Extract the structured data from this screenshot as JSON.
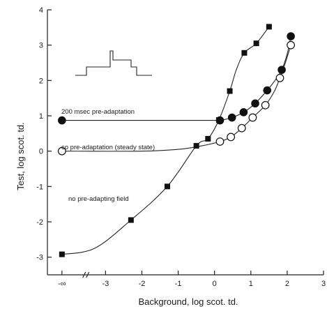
{
  "chart_data": {
    "type": "scatter",
    "title": "",
    "xlabel": "Background, log scot. td.",
    "ylabel": "Test, log scot. td.",
    "xlim": [
      -4.6,
      3.0
    ],
    "ylim": [
      -3.5,
      4.0
    ],
    "x_ticks": [
      {
        "value": -4.2,
        "label": "-∞"
      },
      {
        "value": -3,
        "label": "-3"
      },
      {
        "value": -2,
        "label": "-2"
      },
      {
        "value": -1,
        "label": "-1"
      },
      {
        "value": 0,
        "label": "0"
      },
      {
        "value": 1,
        "label": "1"
      },
      {
        "value": 2,
        "label": "2"
      },
      {
        "value": 3,
        "label": "3"
      }
    ],
    "y_ticks": [
      {
        "value": -3,
        "label": "-3"
      },
      {
        "value": -2,
        "label": "-2"
      },
      {
        "value": -1,
        "label": "-1"
      },
      {
        "value": 0,
        "label": "0"
      },
      {
        "value": 1,
        "label": "1"
      },
      {
        "value": 2,
        "label": "2"
      },
      {
        "value": 3,
        "label": "3"
      },
      {
        "value": 4,
        "label": "4"
      }
    ],
    "series": [
      {
        "name": "200 msec pre-adaptation",
        "marker": "filled-circle",
        "points": [
          [
            -4.2,
            0.87
          ],
          [
            0.15,
            0.87
          ],
          [
            0.48,
            0.95
          ],
          [
            0.8,
            1.1
          ],
          [
            1.12,
            1.35
          ],
          [
            1.45,
            1.72
          ],
          [
            1.85,
            2.3
          ],
          [
            2.1,
            3.25
          ]
        ],
        "curve": [
          [
            -4.2,
            0.87
          ],
          [
            -1.0,
            0.87
          ],
          [
            0.0,
            0.87
          ],
          [
            0.15,
            0.87
          ],
          [
            0.48,
            0.95
          ],
          [
            0.8,
            1.1
          ],
          [
            1.12,
            1.35
          ],
          [
            1.45,
            1.72
          ],
          [
            1.65,
            1.98
          ],
          [
            1.85,
            2.3
          ],
          [
            2.0,
            2.75
          ],
          [
            2.1,
            3.25
          ]
        ]
      },
      {
        "name": "co pre-adaptation (steady state)",
        "marker": "open-circle",
        "points": [
          [
            -4.2,
            0.0
          ],
          [
            0.15,
            0.27
          ],
          [
            0.45,
            0.4
          ],
          [
            0.75,
            0.65
          ],
          [
            1.05,
            0.95
          ],
          [
            1.4,
            1.3
          ],
          [
            1.8,
            2.07
          ],
          [
            2.1,
            3.0
          ]
        ],
        "curve": [
          [
            -4.2,
            0.0
          ],
          [
            -2.0,
            0.0
          ],
          [
            -1.0,
            0.05
          ],
          [
            -0.4,
            0.14
          ],
          [
            0.15,
            0.27
          ],
          [
            0.45,
            0.4
          ],
          [
            0.75,
            0.65
          ],
          [
            1.05,
            0.95
          ],
          [
            1.4,
            1.3
          ],
          [
            1.65,
            1.7
          ],
          [
            1.8,
            2.07
          ],
          [
            1.95,
            2.5
          ],
          [
            2.1,
            3.0
          ]
        ]
      },
      {
        "name": "no pre-adapting field",
        "marker": "filled-square",
        "points": [
          [
            -4.2,
            -2.92
          ],
          [
            -2.3,
            -1.95
          ],
          [
            -1.3,
            -1.0
          ],
          [
            -0.5,
            0.15
          ],
          [
            -0.18,
            0.35
          ],
          [
            0.12,
            0.88
          ],
          [
            0.42,
            1.7
          ],
          [
            0.82,
            2.78
          ],
          [
            1.15,
            3.05
          ],
          [
            1.5,
            3.52
          ]
        ],
        "curve": [
          [
            -4.2,
            -2.92
          ],
          [
            -3.3,
            -2.75
          ],
          [
            -2.3,
            -1.95
          ],
          [
            -1.3,
            -1.0
          ],
          [
            -0.5,
            0.15
          ],
          [
            -0.18,
            0.35
          ],
          [
            0.12,
            0.88
          ],
          [
            0.42,
            1.7
          ],
          [
            0.6,
            2.3
          ],
          [
            0.82,
            2.78
          ],
          [
            1.15,
            3.05
          ],
          [
            1.5,
            3.52
          ]
        ]
      }
    ],
    "annotations": [
      {
        "text": "200 msec pre-adaptation",
        "x": -3.3,
        "y": 1.05
      },
      {
        "text": "co pre-adaptation (steady state)",
        "x": -3.3,
        "y": 0.15
      },
      {
        "text": "no pre-adapting field",
        "x": -3.3,
        "y": -1.65
      }
    ],
    "inset_stimulus": "step-pulse-diagram",
    "grid": false,
    "legend": "none"
  }
}
